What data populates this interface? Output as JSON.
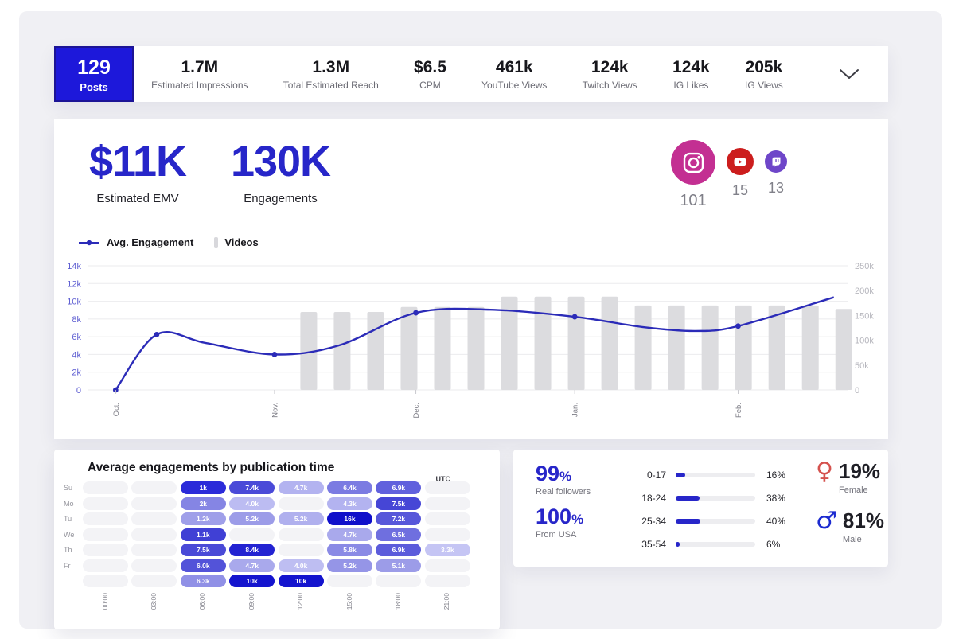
{
  "colors": {
    "accent_blue": "#2726c9",
    "tile_blue": "#1d18da",
    "line_blue": "#2b2bb8",
    "bar_gray": "#dcdcdf",
    "instagram_pink": "#c32f92",
    "youtube_red": "#cc1d1d",
    "twitch_purple": "#6e46c9",
    "female_red": "#d5524e",
    "male_blue": "#1c2bd0"
  },
  "top_stats": {
    "highlight": {
      "value": "129",
      "label": "Posts"
    },
    "items": [
      {
        "value": "1.7M",
        "label": "Estimated Impressions"
      },
      {
        "value": "1.3M",
        "label": "Total Estimated Reach"
      },
      {
        "value": "$6.5",
        "label": "CPM"
      },
      {
        "value": "461k",
        "label": "YouTube Views"
      },
      {
        "value": "124k",
        "label": "Twitch Views"
      },
      {
        "value": "124k",
        "label": "IG Likes"
      },
      {
        "value": "205k",
        "label": "IG Views"
      }
    ],
    "expander_icon": "chevron-down"
  },
  "summary": {
    "emv": {
      "value": "$11K",
      "label": "Estimated EMV"
    },
    "engagements": {
      "value": "130K",
      "label": "Engagements"
    },
    "platforms": [
      {
        "name": "instagram",
        "count": "101",
        "color": "#c32f92",
        "size": 56
      },
      {
        "name": "youtube",
        "count": "15",
        "color": "#cc1d1d",
        "size": 34
      },
      {
        "name": "twitch",
        "count": "13",
        "color": "#6e46c9",
        "size": 28
      }
    ]
  },
  "legend": [
    {
      "label": "Avg. Engagement",
      "type": "line"
    },
    {
      "label": "Videos",
      "type": "bar"
    }
  ],
  "chart_data": [
    {
      "id": "engagement_timeline",
      "type": "line",
      "left_axis": {
        "label": "Avg. Engagement",
        "ticks": [
          "14k",
          "12k",
          "10k",
          "8k",
          "6k",
          "4k",
          "2k",
          "0"
        ],
        "tick_values": [
          14,
          12,
          10,
          8,
          6,
          4,
          2,
          0
        ],
        "max": 14
      },
      "right_axis": {
        "label": "Videos",
        "ticks": [
          "250k",
          "200k",
          "150k",
          "100k",
          "50k",
          "0"
        ],
        "tick_values": [
          250,
          200,
          150,
          100,
          50,
          0
        ],
        "max": 250
      },
      "x_ticks": [
        {
          "label": "Oct.",
          "x": 0.037
        },
        {
          "label": "Nov.",
          "x": 0.246
        },
        {
          "label": "Dec.",
          "x": 0.432
        },
        {
          "label": "Jan.",
          "x": 0.641
        },
        {
          "label": "Feb.",
          "x": 0.856
        }
      ],
      "series": [
        {
          "name": "Avg. Engagement",
          "type": "line",
          "axis": "left",
          "color": "#2b2bb8",
          "points": [
            {
              "x": 0.037,
              "y": 0,
              "dot": true
            },
            {
              "x": 0.091,
              "y": 6.25,
              "dot": true
            },
            {
              "x": 0.155,
              "y": 5.3,
              "dot": false
            },
            {
              "x": 0.246,
              "y": 4.0,
              "dot": true
            },
            {
              "x": 0.33,
              "y": 5.0,
              "dot": false
            },
            {
              "x": 0.432,
              "y": 8.7,
              "dot": true
            },
            {
              "x": 0.53,
              "y": 9.05,
              "dot": false
            },
            {
              "x": 0.641,
              "y": 8.25,
              "dot": true
            },
            {
              "x": 0.73,
              "y": 7.1,
              "dot": false
            },
            {
              "x": 0.8,
              "y": 6.65,
              "dot": false
            },
            {
              "x": 0.856,
              "y": 7.2,
              "dot": true
            },
            {
              "x": 0.982,
              "y": 10.45,
              "dot": false
            }
          ]
        },
        {
          "name": "Videos",
          "type": "bar",
          "axis": "right",
          "color": "#dcdcdf",
          "start_x": 0.291,
          "end_x": 0.995,
          "values": [
            157,
            157,
            157,
            167,
            167,
            167,
            188,
            188,
            188,
            188,
            170,
            170,
            170,
            170,
            170,
            170,
            163
          ]
        }
      ]
    },
    {
      "id": "publication_heatmap",
      "type": "heatmap",
      "title": "Average engagements by publication time",
      "timezone_label": "UTC",
      "columns": [
        "00:00",
        "03:00",
        "06:00",
        "09:00",
        "12:00",
        "15:00",
        "18:00",
        "21:00"
      ],
      "rows": [
        {
          "day": "Su",
          "cells": [
            null,
            null,
            {
              "v": "1k",
              "c": "#2b2bd9"
            },
            {
              "v": "7.4k",
              "c": "#4a4ad8"
            },
            {
              "v": "4.7k",
              "c": "#b3b3f0"
            },
            {
              "v": "6.4k",
              "c": "#7b7be2"
            },
            {
              "v": "6.9k",
              "c": "#6161dd"
            },
            null
          ]
        },
        {
          "day": "Mo",
          "cells": [
            null,
            null,
            {
              "v": "2k",
              "c": "#8585e4"
            },
            {
              "v": "4.0k",
              "c": "#bcbcf2"
            },
            null,
            {
              "v": "4.3k",
              "c": "#b3b3f0"
            },
            {
              "v": "7.5k",
              "c": "#4646d6"
            },
            null
          ]
        },
        {
          "day": "Tu",
          "cells": [
            null,
            null,
            {
              "v": "1.2k",
              "c": "#9f9fe9"
            },
            {
              "v": "5.2k",
              "c": "#9c9ce8"
            },
            {
              "v": "5.2k",
              "c": "#b0b0ee"
            },
            {
              "v": "16k",
              "c": "#1010ca"
            },
            {
              "v": "7.2k",
              "c": "#5757da"
            },
            null
          ]
        },
        {
          "day": "We",
          "cells": [
            null,
            null,
            {
              "v": "1.1k",
              "c": "#4040d5"
            },
            null,
            null,
            {
              "v": "4.7k",
              "c": "#a9a9ec"
            },
            {
              "v": "6.5k",
              "c": "#6f6fdf"
            },
            null
          ]
        },
        {
          "day": "Th",
          "cells": [
            null,
            null,
            {
              "v": "7.5k",
              "c": "#4a4ad7"
            },
            {
              "v": "8.4k",
              "c": "#2323d2"
            },
            null,
            {
              "v": "5.8k",
              "c": "#8a8ae5"
            },
            {
              "v": "6.9k",
              "c": "#5c5cdb"
            },
            {
              "v": "3.3k",
              "c": "#c5c5f4"
            }
          ]
        },
        {
          "day": "Fr",
          "cells": [
            null,
            null,
            {
              "v": "6.0k",
              "c": "#5353d9"
            },
            {
              "v": "4.7k",
              "c": "#a9a9ec"
            },
            {
              "v": "4.0k",
              "c": "#bebef2"
            },
            {
              "v": "5.2k",
              "c": "#9595e7"
            },
            {
              "v": "5.1k",
              "c": "#9c9ce8"
            },
            null
          ]
        },
        {
          "day": "",
          "cells": [
            null,
            null,
            {
              "v": "6.3k",
              "c": "#9090e6"
            },
            {
              "v": "10k",
              "c": "#1414ce"
            },
            {
              "v": "10k",
              "c": "#1414ce"
            },
            null,
            null,
            null
          ]
        }
      ]
    },
    {
      "id": "audience_age",
      "type": "bar",
      "categories": [
        "0-17",
        "18-24",
        "25-34",
        "35-54"
      ],
      "values": [
        16,
        38,
        40,
        6
      ],
      "unit": "%"
    }
  ],
  "audience": {
    "real_followers": {
      "value": "99",
      "suffix": "%",
      "label": "Real followers"
    },
    "from_usa": {
      "value": "100",
      "suffix": "%",
      "label": "From USA"
    },
    "gender": [
      {
        "icon": "female",
        "glyph": "♀",
        "value": "19%",
        "label": "Female",
        "color": "#d5524e"
      },
      {
        "icon": "male",
        "glyph": "♂",
        "value": "81%",
        "label": "Male",
        "color": "#1c2bd0"
      }
    ]
  }
}
